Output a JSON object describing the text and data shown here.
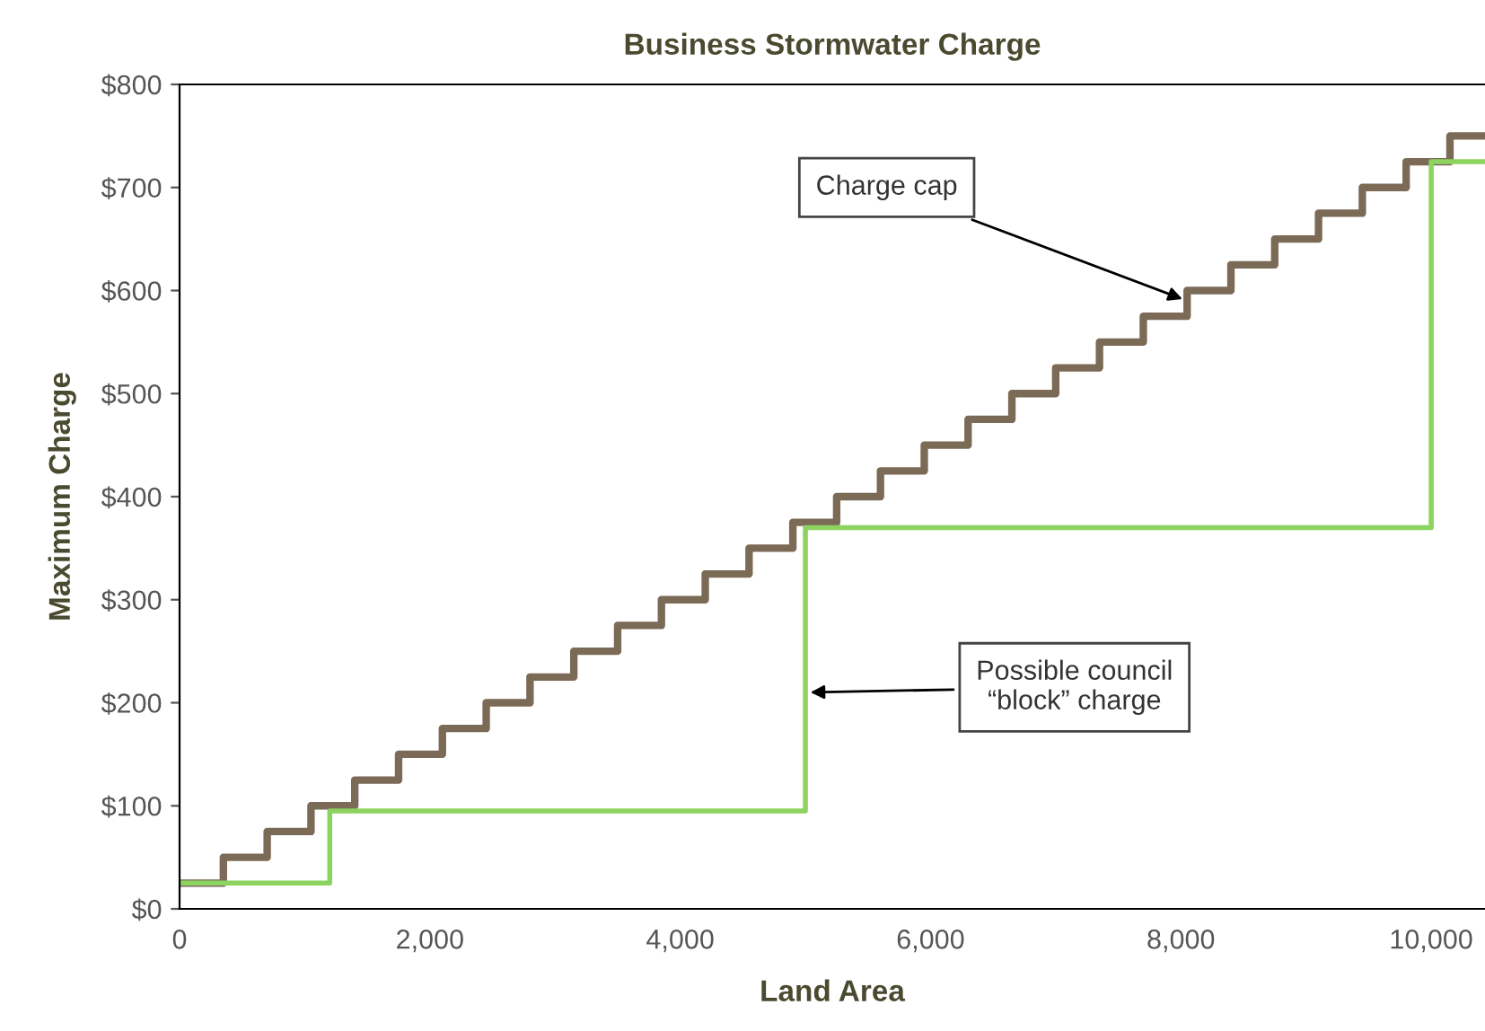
{
  "chart_data": {
    "type": "step",
    "title": "Business Stormwater Charge",
    "xlabel": "Land Area",
    "ylabel": "Maximum Charge",
    "xlim": [
      0,
      10430
    ],
    "ylim": [
      0,
      800
    ],
    "xticks": [
      0,
      {
        "value": 2000,
        "label": "2,000"
      },
      {
        "value": 4000,
        "label": "4,000"
      },
      {
        "value": 6000,
        "label": "6,000"
      },
      {
        "value": 8000,
        "label": "8,000"
      },
      {
        "value": 10000,
        "label": "10,000"
      }
    ],
    "yticks": [
      {
        "value": 0,
        "label": "$0"
      },
      {
        "value": 100,
        "label": "$100"
      },
      {
        "value": 200,
        "label": "$200"
      },
      {
        "value": 300,
        "label": "$300"
      },
      {
        "value": 400,
        "label": "$400"
      },
      {
        "value": 500,
        "label": "$500"
      },
      {
        "value": 600,
        "label": "$600"
      },
      {
        "value": 700,
        "label": "$700"
      },
      {
        "value": 800,
        "label": "$800"
      }
    ],
    "grid": false,
    "legend": false,
    "series": [
      {
        "color": "#7b6a56",
        "x": [
          0,
          350,
          700,
          1050,
          1400,
          1750,
          2100,
          2450,
          2800,
          3150,
          3500,
          3850,
          4200,
          4550,
          4900,
          5250,
          5600,
          5950,
          6300,
          6650,
          7000,
          7350,
          7700,
          8050,
          8400,
          8750,
          9100,
          9450,
          9800,
          10150,
          10430
        ],
        "values": [
          25,
          50,
          75,
          100,
          125,
          150,
          175,
          200,
          225,
          250,
          275,
          300,
          325,
          350,
          375,
          400,
          425,
          450,
          475,
          500,
          525,
          550,
          575,
          600,
          625,
          650,
          675,
          700,
          725,
          750,
          750
        ]
      },
      {
        "color": "#8dd35f",
        "x": [
          0,
          1200,
          5000,
          10000,
          10430
        ],
        "values": [
          25,
          95,
          370,
          725,
          725
        ]
      }
    ],
    "annotations": [
      {
        "text": "Charge cap",
        "x": 8050,
        "y": 590
      },
      {
        "text": "Possible council\n“block” charge",
        "x": 5000,
        "y": 210
      }
    ]
  }
}
